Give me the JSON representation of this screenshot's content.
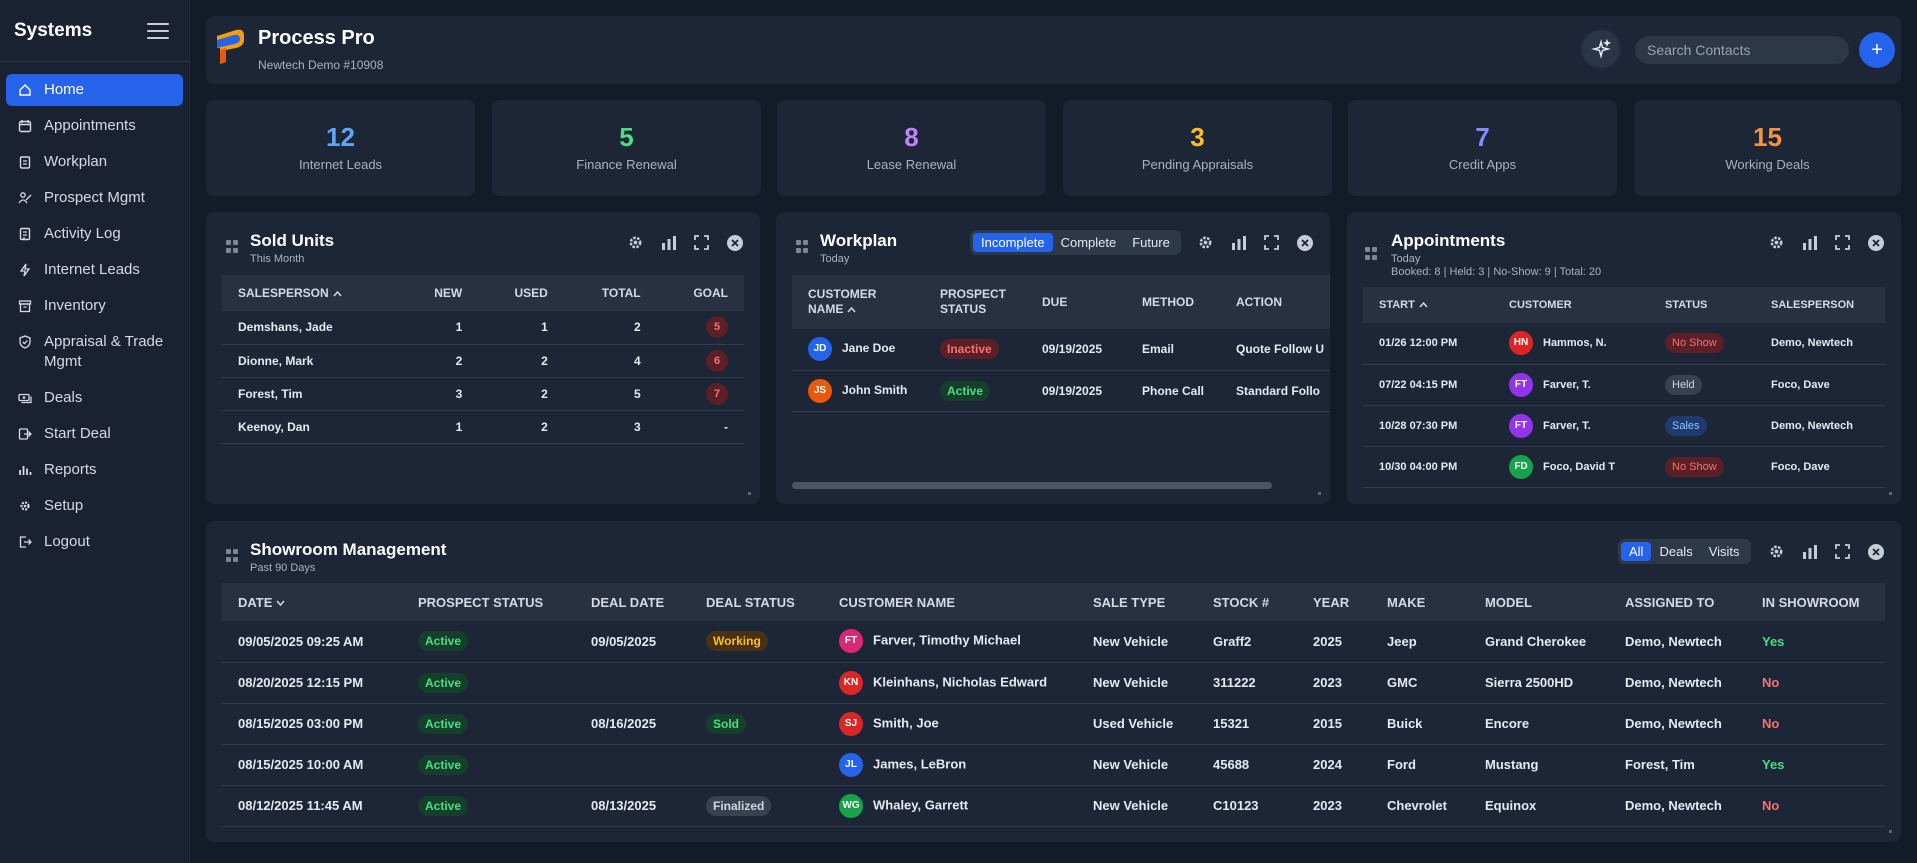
{
  "sidebar": {
    "title": "Systems",
    "items": [
      {
        "label": "Home",
        "icon": "home-icon"
      },
      {
        "label": "Appointments",
        "icon": "calendar-icon"
      },
      {
        "label": "Workplan",
        "icon": "clipboard-icon"
      },
      {
        "label": "Prospect Mgmt",
        "icon": "prospect-icon"
      },
      {
        "label": "Activity Log",
        "icon": "log-icon"
      },
      {
        "label": "Internet Leads",
        "icon": "bolt-icon"
      },
      {
        "label": "Inventory",
        "icon": "inventory-icon"
      },
      {
        "label": "Appraisal & Trade Mgmt",
        "icon": "shield-icon"
      },
      {
        "label": "Deals",
        "icon": "cash-icon"
      },
      {
        "label": "Start Deal",
        "icon": "start-deal-icon"
      },
      {
        "label": "Reports",
        "icon": "chart-icon"
      },
      {
        "label": "Setup",
        "icon": "gear-icon"
      },
      {
        "label": "Logout",
        "icon": "logout-icon"
      }
    ]
  },
  "header": {
    "title": "Process Pro",
    "subtitle": "Newtech Demo #10908",
    "search_placeholder": "Search Contacts",
    "add_label": "+"
  },
  "stats": [
    {
      "value": "12",
      "label": "Internet Leads",
      "color": "#60a5fa"
    },
    {
      "value": "5",
      "label": "Finance Renewal",
      "color": "#4ade80"
    },
    {
      "value": "8",
      "label": "Lease Renewal",
      "color": "#c084fc"
    },
    {
      "value": "3",
      "label": "Pending Appraisals",
      "color": "#fbbf24"
    },
    {
      "value": "7",
      "label": "Credit Apps",
      "color": "#818cf8"
    },
    {
      "value": "15",
      "label": "Working Deals",
      "color": "#fb923c"
    }
  ],
  "sold_units": {
    "title": "Sold Units",
    "subtitle": "This Month",
    "columns": [
      "SALESPERSON",
      "NEW",
      "USED",
      "TOTAL",
      "GOAL"
    ],
    "rows": [
      {
        "name": "Demshans, Jade",
        "new": "1",
        "used": "1",
        "total": "2",
        "goal": "5"
      },
      {
        "name": "Dionne, Mark",
        "new": "2",
        "used": "2",
        "total": "4",
        "goal": "6"
      },
      {
        "name": "Forest, Tim",
        "new": "3",
        "used": "2",
        "total": "5",
        "goal": "7"
      },
      {
        "name": "Keenoy, Dan",
        "new": "1",
        "used": "2",
        "total": "3",
        "goal": "-"
      }
    ]
  },
  "workplan": {
    "title": "Workplan",
    "subtitle": "Today",
    "tabs": [
      "Incomplete",
      "Complete",
      "Future"
    ],
    "columns": [
      "CUSTOMER NAME",
      "PROSPECT STATUS",
      "DUE",
      "METHOD",
      "ACTION"
    ],
    "rows": [
      {
        "initials": "JD",
        "avatar_color": "#2563eb",
        "name": "Jane Doe",
        "status": "Inactive",
        "due": "09/19/2025",
        "method": "Email",
        "action": "Quote Follow U"
      },
      {
        "initials": "JS",
        "avatar_color": "#ea580c",
        "name": "John Smith",
        "status": "Active",
        "due": "09/19/2025",
        "method": "Phone Call",
        "action": "Standard Follo"
      }
    ]
  },
  "appointments": {
    "title": "Appointments",
    "subtitle": "Today",
    "summary": "Booked: 8 | Held: 3 | No-Show: 9 | Total: 20",
    "columns": [
      "START",
      "CUSTOMER",
      "STATUS",
      "SALESPERSON"
    ],
    "rows": [
      {
        "start": "01/26 12:00 PM",
        "initials": "HN",
        "avatar_color": "#dc2626",
        "customer": "Hammos, N.",
        "status": "No Show",
        "salesperson": "Demo, Newtech"
      },
      {
        "start": "07/22 04:15 PM",
        "initials": "FT",
        "avatar_color": "#9333ea",
        "customer": "Farver, T.",
        "status": "Held",
        "salesperson": "Foco, Dave"
      },
      {
        "start": "10/28 07:30 PM",
        "initials": "FT",
        "avatar_color": "#9333ea",
        "customer": "Farver, T.",
        "status": "Sales",
        "salesperson": "Demo, Newtech"
      },
      {
        "start": "10/30 04:00 PM",
        "initials": "FD",
        "avatar_color": "#16a34a",
        "customer": "Foco, David T",
        "status": "No Show",
        "salesperson": "Foco, Dave"
      }
    ]
  },
  "showroom": {
    "title": "Showroom Management",
    "subtitle": "Past 90 Days",
    "tabs": [
      "All",
      "Deals",
      "Visits"
    ],
    "columns": [
      "DATE",
      "PROSPECT STATUS",
      "DEAL DATE",
      "DEAL STATUS",
      "CUSTOMER NAME",
      "SALE TYPE",
      "STOCK #",
      "YEAR",
      "MAKE",
      "MODEL",
      "ASSIGNED TO",
      "IN SHOWROOM"
    ],
    "rows": [
      {
        "date": "09/05/2025 09:25 AM",
        "prospect_status": "Active",
        "deal_date": "09/05/2025",
        "deal_status": "Working",
        "initials": "FT",
        "avatar_color": "#db2777",
        "customer": "Farver, Timothy Michael",
        "sale_type": "New Vehicle",
        "stock": "Graff2",
        "year": "2025",
        "make": "Jeep",
        "model": "Grand Cherokee",
        "assigned": "Demo, Newtech",
        "in_showroom": "Yes"
      },
      {
        "date": "08/20/2025 12:15 PM",
        "prospect_status": "Active",
        "deal_date": "",
        "deal_status": "",
        "initials": "KN",
        "avatar_color": "#dc2626",
        "customer": "Kleinhans, Nicholas Edward",
        "sale_type": "New Vehicle",
        "stock": "311222",
        "year": "2023",
        "make": "GMC",
        "model": "Sierra 2500HD",
        "assigned": "Demo, Newtech",
        "in_showroom": "No"
      },
      {
        "date": "08/15/2025 03:00 PM",
        "prospect_status": "Active",
        "deal_date": "08/16/2025",
        "deal_status": "Sold",
        "initials": "SJ",
        "avatar_color": "#dc2626",
        "customer": "Smith, Joe",
        "sale_type": "Used Vehicle",
        "stock": "15321",
        "year": "2015",
        "make": "Buick",
        "model": "Encore",
        "assigned": "Demo, Newtech",
        "in_showroom": "No"
      },
      {
        "date": "08/15/2025 10:00 AM",
        "prospect_status": "Active",
        "deal_date": "",
        "deal_status": "",
        "initials": "JL",
        "avatar_color": "#2563eb",
        "customer": "James, LeBron",
        "sale_type": "New Vehicle",
        "stock": "45688",
        "year": "2024",
        "make": "Ford",
        "model": "Mustang",
        "assigned": "Forest, Tim",
        "in_showroom": "Yes"
      },
      {
        "date": "08/12/2025 11:45 AM",
        "prospect_status": "Active",
        "deal_date": "08/13/2025",
        "deal_status": "Finalized",
        "initials": "WG",
        "avatar_color": "#16a34a",
        "customer": "Whaley, Garrett",
        "sale_type": "New Vehicle",
        "stock": "C10123",
        "year": "2023",
        "make": "Chevrolet",
        "model": "Equinox",
        "assigned": "Demo, Newtech",
        "in_showroom": "No"
      }
    ]
  }
}
